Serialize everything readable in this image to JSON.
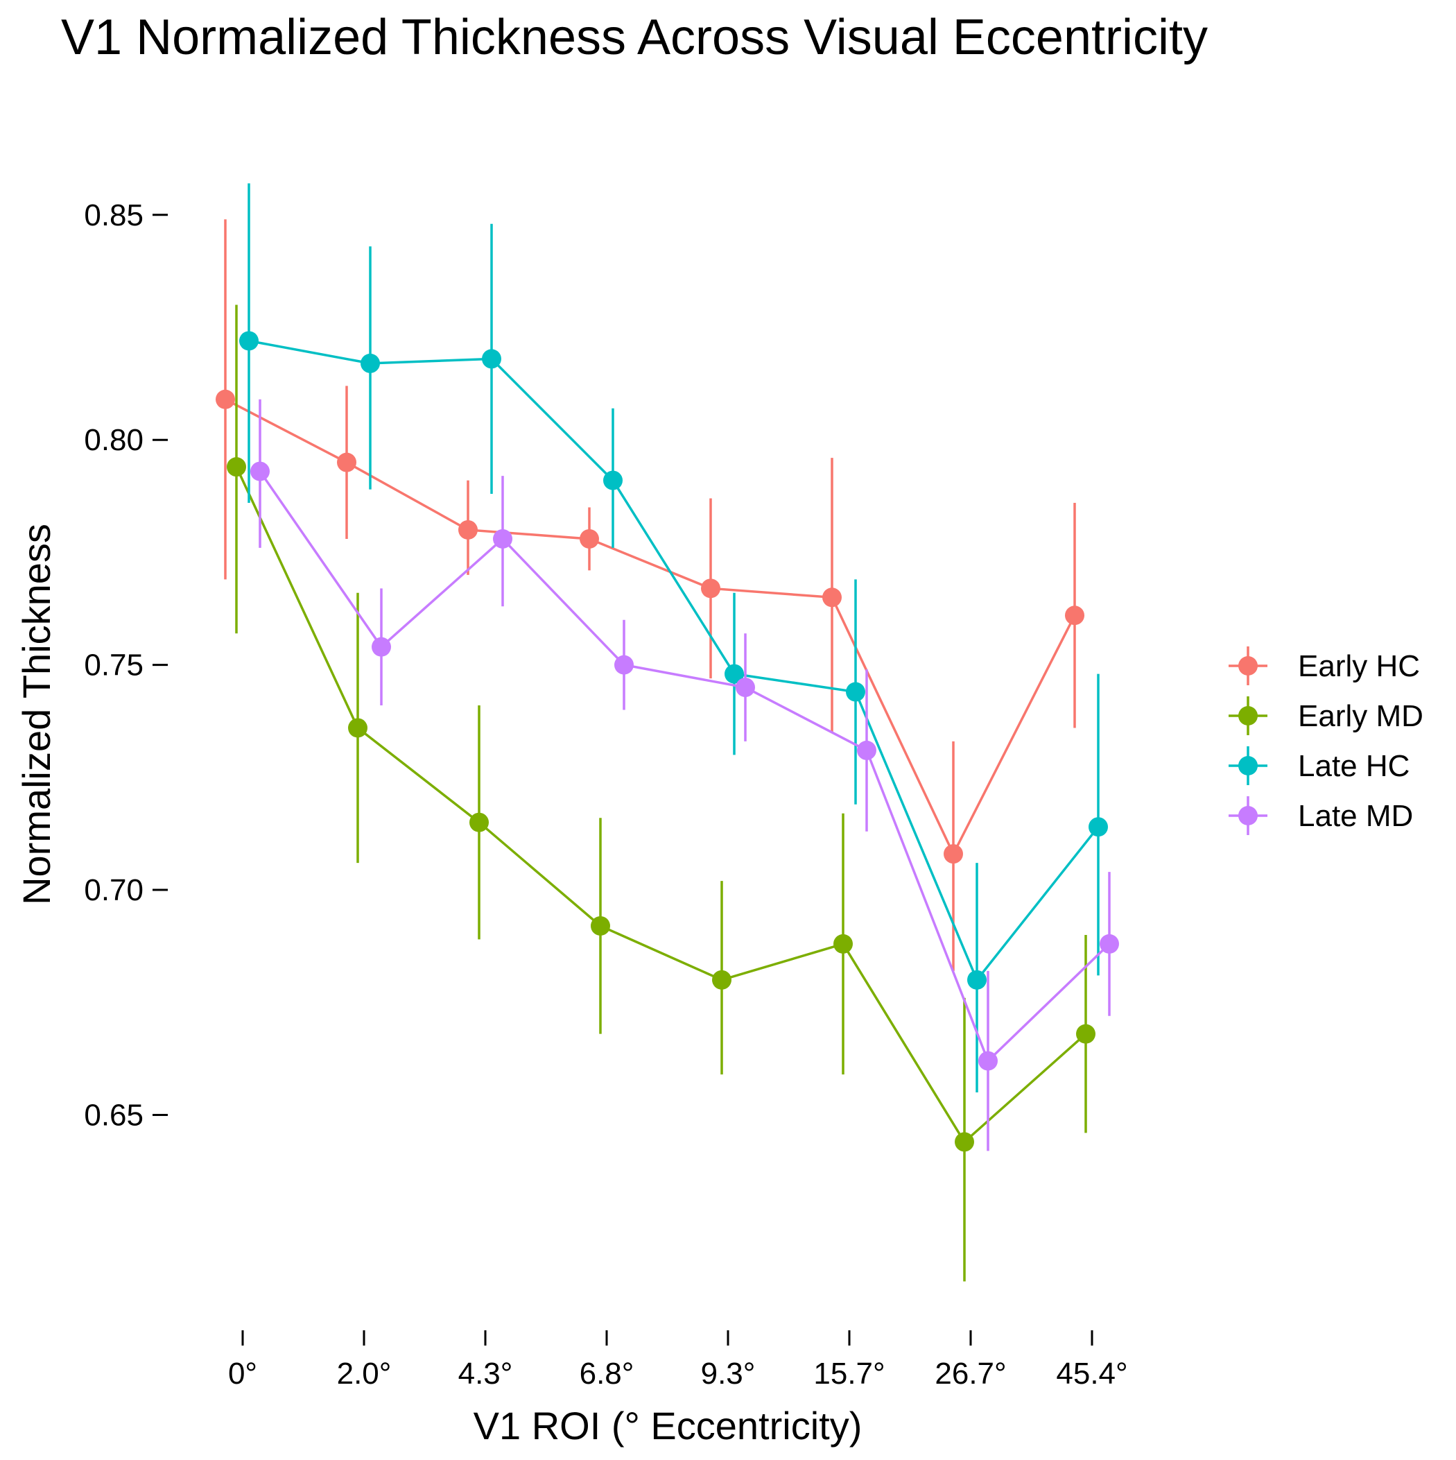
{
  "chart_data": {
    "type": "line",
    "title": "V1 Normalized Thickness Across Visual Eccentricity",
    "xlabel": "V1 ROI (° Eccentricity)",
    "ylabel": "Normalized Thickness",
    "categories": [
      "0°",
      "2.0°",
      "4.3°",
      "6.8°",
      "9.3°",
      "15.7°",
      "26.7°",
      "45.4°"
    ],
    "y_ticks": [
      "0.65",
      "0.70",
      "0.75",
      "0.80",
      "0.85"
    ],
    "ylim": [
      0.608,
      0.87
    ],
    "grid": false,
    "legend_position": "right",
    "error_bars": true,
    "series": [
      {
        "name": "Early HC",
        "color": "#F8766D",
        "values": [
          0.809,
          0.795,
          0.78,
          0.778,
          0.767,
          0.765,
          0.708,
          0.761
        ],
        "lower": [
          0.769,
          0.778,
          0.77,
          0.771,
          0.747,
          0.735,
          0.682,
          0.736
        ],
        "upper": [
          0.849,
          0.812,
          0.791,
          0.785,
          0.787,
          0.796,
          0.733,
          0.786
        ]
      },
      {
        "name": "Early MD",
        "color": "#7CAE00",
        "values": [
          0.794,
          0.736,
          0.715,
          0.692,
          0.68,
          0.688,
          0.644,
          0.668
        ],
        "lower": [
          0.757,
          0.706,
          0.689,
          0.668,
          0.659,
          0.659,
          0.613,
          0.646
        ],
        "upper": [
          0.83,
          0.766,
          0.741,
          0.716,
          0.702,
          0.717,
          0.676,
          0.69
        ]
      },
      {
        "name": "Late HC",
        "color": "#00BFC4",
        "values": [
          0.822,
          0.817,
          0.818,
          0.791,
          0.748,
          0.744,
          0.68,
          0.714
        ],
        "lower": [
          0.786,
          0.789,
          0.788,
          0.776,
          0.73,
          0.719,
          0.655,
          0.681
        ],
        "upper": [
          0.857,
          0.843,
          0.848,
          0.807,
          0.766,
          0.769,
          0.706,
          0.748
        ]
      },
      {
        "name": "Late MD",
        "color": "#C77CFF",
        "values": [
          0.793,
          0.754,
          0.778,
          0.75,
          0.745,
          0.731,
          0.662,
          0.688
        ],
        "lower": [
          0.776,
          0.741,
          0.763,
          0.74,
          0.733,
          0.713,
          0.642,
          0.672
        ],
        "upper": [
          0.809,
          0.767,
          0.792,
          0.76,
          0.757,
          0.749,
          0.682,
          0.704
        ]
      }
    ]
  }
}
